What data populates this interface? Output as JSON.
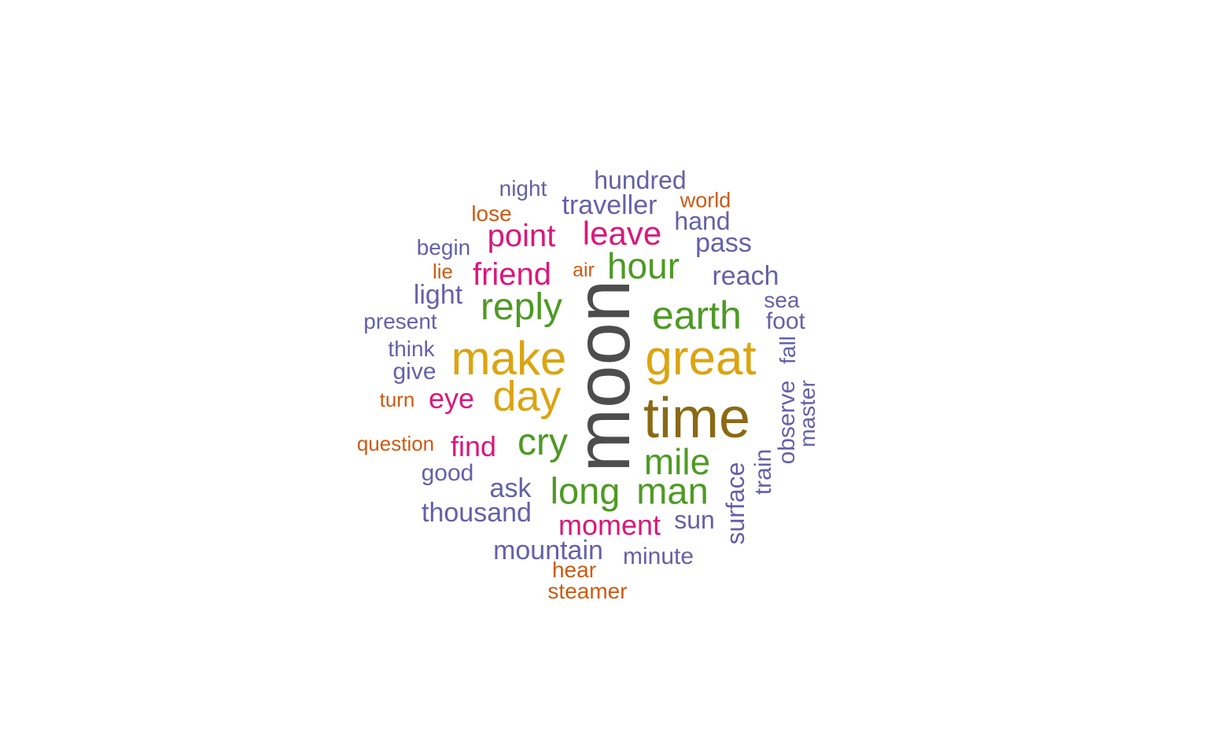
{
  "palette": {
    "gray": "#4d4d4d",
    "brown": "#8b6914",
    "gold": "#dba410",
    "green": "#4e9a24",
    "magenta": "#d9187a",
    "purple": "#6560a8",
    "orange": "#cd5a12"
  },
  "words": [
    {
      "text": "moon",
      "color": "gray",
      "freq": 100
    },
    {
      "text": "time",
      "color": "brown",
      "freq": 72
    },
    {
      "text": "great",
      "color": "gold",
      "freq": 60
    },
    {
      "text": "make",
      "color": "gold",
      "freq": 60
    },
    {
      "text": "day",
      "color": "gold",
      "freq": 55
    },
    {
      "text": "earth",
      "color": "green",
      "freq": 48
    },
    {
      "text": "reply",
      "color": "green",
      "freq": 46
    },
    {
      "text": "cry",
      "color": "green",
      "freq": 46
    },
    {
      "text": "long",
      "color": "green",
      "freq": 44
    },
    {
      "text": "man",
      "color": "green",
      "freq": 44
    },
    {
      "text": "mile",
      "color": "green",
      "freq": 44
    },
    {
      "text": "hour",
      "color": "green",
      "freq": 44
    },
    {
      "text": "leave",
      "color": "magenta",
      "freq": 38
    },
    {
      "text": "point",
      "color": "magenta",
      "freq": 37
    },
    {
      "text": "friend",
      "color": "magenta",
      "freq": 37
    },
    {
      "text": "moment",
      "color": "magenta",
      "freq": 35
    },
    {
      "text": "find",
      "color": "magenta",
      "freq": 34
    },
    {
      "text": "eye",
      "color": "magenta",
      "freq": 34
    },
    {
      "text": "surface",
      "color": "purple",
      "freq": 32
    },
    {
      "text": "traveller",
      "color": "purple",
      "freq": 32
    },
    {
      "text": "reach",
      "color": "purple",
      "freq": 32
    },
    {
      "text": "thousand",
      "color": "purple",
      "freq": 32
    },
    {
      "text": "mountain",
      "color": "purple",
      "freq": 32
    },
    {
      "text": "ask",
      "color": "purple",
      "freq": 32
    },
    {
      "text": "pass",
      "color": "purple",
      "freq": 31
    },
    {
      "text": "light",
      "color": "purple",
      "freq": 31
    },
    {
      "text": "sun",
      "color": "purple",
      "freq": 30
    },
    {
      "text": "hundred",
      "color": "purple",
      "freq": 30
    },
    {
      "text": "hand",
      "color": "purple",
      "freq": 30
    },
    {
      "text": "train",
      "color": "purple",
      "freq": 30
    },
    {
      "text": "minute",
      "color": "purple",
      "freq": 29
    },
    {
      "text": "observe",
      "color": "purple",
      "freq": 28
    },
    {
      "text": "foot",
      "color": "purple",
      "freq": 28
    },
    {
      "text": "good",
      "color": "purple",
      "freq": 28
    },
    {
      "text": "give",
      "color": "purple",
      "freq": 28
    },
    {
      "text": "present",
      "color": "purple",
      "freq": 27
    },
    {
      "text": "night",
      "color": "purple",
      "freq": 27
    },
    {
      "text": "begin",
      "color": "purple",
      "freq": 27
    },
    {
      "text": "think",
      "color": "purple",
      "freq": 27
    },
    {
      "text": "sea",
      "color": "purple",
      "freq": 27
    },
    {
      "text": "fall",
      "color": "purple",
      "freq": 27
    },
    {
      "text": "master",
      "color": "purple",
      "freq": 27
    },
    {
      "text": "hear",
      "color": "orange",
      "freq": 26
    },
    {
      "text": "steamer",
      "color": "orange",
      "freq": 26
    },
    {
      "text": "lose",
      "color": "orange",
      "freq": 26
    },
    {
      "text": "world",
      "color": "orange",
      "freq": 26
    },
    {
      "text": "question",
      "color": "orange",
      "freq": 25
    },
    {
      "text": "turn",
      "color": "orange",
      "freq": 25
    },
    {
      "text": "lie",
      "color": "orange",
      "freq": 25
    },
    {
      "text": "air",
      "color": "orange",
      "freq": 24
    }
  ]
}
